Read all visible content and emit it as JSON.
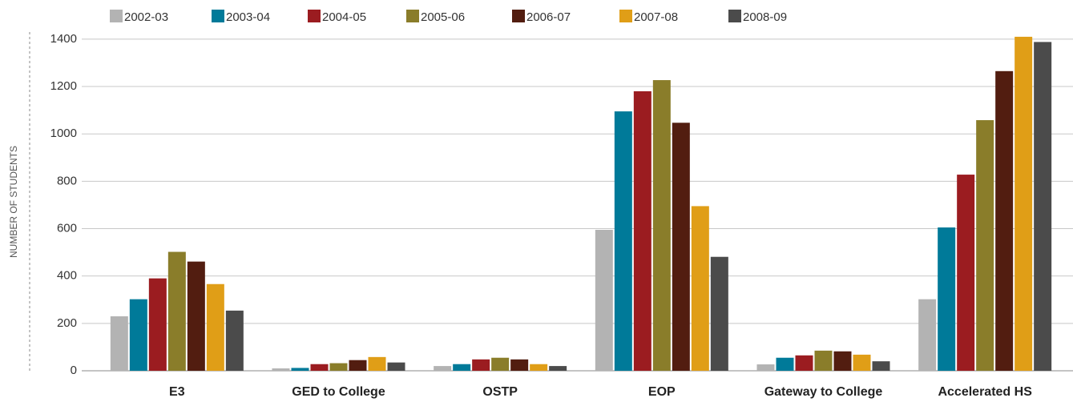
{
  "chart_data": {
    "type": "bar",
    "y_axis_label": "NUMBER OF STUDENTS",
    "categories": [
      "E3",
      "GED to College",
      "OSTP",
      "EOP",
      "Gateway to College",
      "Accelerated HS"
    ],
    "series": [
      {
        "name": "2002-03",
        "color": "#b3b3b3",
        "values": [
          230,
          10,
          20,
          595,
          27,
          302
        ]
      },
      {
        "name": "2003-04",
        "color": "#007a99",
        "values": [
          302,
          12,
          28,
          1095,
          55,
          605
        ]
      },
      {
        "name": "2004-05",
        "color": "#9b1c20",
        "values": [
          390,
          28,
          48,
          1180,
          65,
          828
        ]
      },
      {
        "name": "2005-06",
        "color": "#8a7d2a",
        "values": [
          502,
          32,
          55,
          1227,
          85,
          1058
        ]
      },
      {
        "name": "2006-07",
        "color": "#521d10",
        "values": [
          461,
          45,
          48,
          1047,
          82,
          1265
        ]
      },
      {
        "name": "2007-08",
        "color": "#e09e17",
        "values": [
          366,
          58,
          28,
          695,
          68,
          1410
        ]
      },
      {
        "name": "2008-09",
        "color": "#4b4b4b",
        "values": [
          254,
          35,
          20,
          481,
          40,
          1388
        ]
      }
    ],
    "ylim": [
      0,
      1430
    ],
    "yticks": [
      0,
      200,
      400,
      600,
      800,
      1000,
      1200,
      1400
    ],
    "grid": true
  }
}
